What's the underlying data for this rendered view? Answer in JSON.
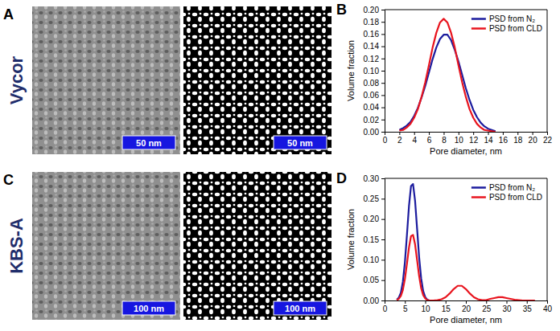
{
  "figure": {
    "rows": [
      {
        "label": "Vycor",
        "image_panel": "A",
        "chart_panel": "B",
        "scale_bars": [
          "50 nm",
          "50 nm"
        ]
      },
      {
        "label": "KBS-A",
        "image_panel": "C",
        "chart_panel": "D",
        "scale_bars": [
          "100 nm",
          "100 nm"
        ]
      }
    ]
  },
  "chart_data": [
    {
      "type": "line",
      "x_label": "Pore diameter, nm",
      "y_label": "Volume fraction",
      "xlim": [
        0,
        22
      ],
      "xticks": [
        0,
        2,
        4,
        6,
        8,
        10,
        12,
        14,
        16,
        18,
        20,
        22
      ],
      "ylim": [
        0,
        0.2
      ],
      "yticks": [
        {
          "value": 0,
          "label": "0.00"
        },
        {
          "value": 0.02,
          "label": "0.02"
        },
        {
          "value": 0.04,
          "label": "0.04"
        },
        {
          "value": 0.06,
          "label": "0.06"
        },
        {
          "value": 0.08,
          "label": "0.08"
        },
        {
          "value": 0.1,
          "label": "0.10"
        },
        {
          "value": 0.12,
          "label": "0.12"
        },
        {
          "value": 0.14,
          "label": "0.14"
        },
        {
          "value": 0.16,
          "label": "0.16"
        },
        {
          "value": 0.18,
          "label": "0.18"
        },
        {
          "value": 0.2,
          "label": "0.20"
        }
      ],
      "legend": "top-right",
      "series": [
        {
          "name": "PSD from N₂",
          "color": "#1c1c9e",
          "x": [
            2,
            2.5,
            3,
            3.5,
            4,
            4.5,
            5,
            5.5,
            6,
            6.5,
            7,
            7.5,
            8,
            8.5,
            9,
            9.5,
            10,
            10.5,
            11,
            11.5,
            12,
            12.5,
            13,
            13.5,
            14,
            14.5,
            15
          ],
          "values": [
            0.003,
            0.006,
            0.01,
            0.016,
            0.026,
            0.039,
            0.056,
            0.075,
            0.097,
            0.119,
            0.138,
            0.152,
            0.159,
            0.159,
            0.15,
            0.134,
            0.115,
            0.093,
            0.071,
            0.052,
            0.036,
            0.024,
            0.015,
            0.009,
            0.005,
            0.003,
            0.001
          ]
        },
        {
          "name": "PSD from CLD",
          "color": "#e8141e",
          "x": [
            2,
            2.5,
            3,
            3.5,
            4,
            4.5,
            5,
            5.5,
            6,
            6.5,
            7,
            7.5,
            8,
            8.5,
            9,
            9.5,
            10,
            10.5,
            11,
            11.5,
            12,
            12.5,
            13,
            13.5,
            14,
            14.5,
            15
          ],
          "values": [
            0.002,
            0.003,
            0.007,
            0.013,
            0.023,
            0.037,
            0.057,
            0.081,
            0.109,
            0.138,
            0.162,
            0.179,
            0.185,
            0.179,
            0.162,
            0.138,
            0.109,
            0.081,
            0.057,
            0.037,
            0.023,
            0.013,
            0.007,
            0.003,
            0.002,
            0.001,
            0
          ]
        }
      ]
    },
    {
      "type": "line",
      "x_label": "Pore diameter, nm",
      "y_label": "Volume fraction",
      "xlim": [
        0,
        40
      ],
      "xticks": [
        0,
        5,
        10,
        15,
        20,
        25,
        30,
        35,
        40
      ],
      "ylim": [
        0,
        0.3
      ],
      "yticks": [
        {
          "value": 0,
          "label": "0.00"
        },
        {
          "value": 0.05,
          "label": "0.05"
        },
        {
          "value": 0.1,
          "label": "0.10"
        },
        {
          "value": 0.15,
          "label": "0.15"
        },
        {
          "value": 0.2,
          "label": "0.20"
        },
        {
          "value": 0.25,
          "label": "0.25"
        },
        {
          "value": 0.3,
          "label": "0.30"
        }
      ],
      "legend": "top-right",
      "series": [
        {
          "name": "PSD from N₂",
          "color": "#1c1c9e",
          "x": [
            3,
            3.5,
            4,
            4.5,
            5,
            5.5,
            6,
            6.5,
            7,
            7.5,
            8,
            8.5,
            9,
            9.5,
            10,
            10.5,
            11
          ],
          "values": [
            0.002,
            0.007,
            0.019,
            0.046,
            0.094,
            0.161,
            0.232,
            0.281,
            0.286,
            0.245,
            0.176,
            0.106,
            0.054,
            0.023,
            0.008,
            0.002,
            0
          ]
        },
        {
          "name": "PSD from CLD",
          "color": "#e8141e",
          "x": [
            3,
            3.5,
            4,
            4.5,
            5,
            5.5,
            6,
            6.5,
            7,
            7.5,
            8,
            8.5,
            9,
            9.5,
            10,
            10.5,
            11,
            12,
            13,
            14,
            15,
            16,
            17,
            18,
            19,
            20,
            21,
            22,
            23,
            24,
            25,
            26,
            27,
            28,
            29,
            30,
            31,
            32,
            33,
            34,
            36,
            37
          ],
          "values": [
            0.001,
            0.004,
            0.011,
            0.026,
            0.053,
            0.09,
            0.13,
            0.158,
            0.161,
            0.138,
            0.099,
            0.06,
            0.03,
            0.013,
            0.005,
            0.001,
            0,
            0,
            0.001,
            0.003,
            0.008,
            0.017,
            0.028,
            0.036,
            0.036,
            0.028,
            0.017,
            0.008,
            0.003,
            0.001,
            0.001,
            0.004,
            0.006,
            0.008,
            0.008,
            0.006,
            0.004,
            0.002,
            0.001,
            0,
            0,
            0
          ]
        }
      ]
    }
  ]
}
